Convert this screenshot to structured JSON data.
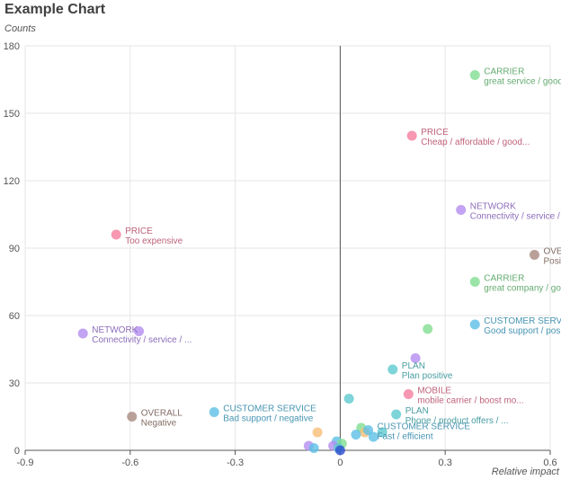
{
  "chart_data": {
    "type": "scatter",
    "title": "Example Chart",
    "xlabel": "Relative impact",
    "ylabel": "Counts",
    "xlim": [
      -0.9,
      0.6
    ],
    "ylim": [
      0,
      180
    ],
    "x_ticks": [
      -0.9,
      -0.6,
      -0.3,
      0,
      0.3,
      0.6
    ],
    "x_tick_labels": [
      "-0.9",
      "-0.6",
      "-0.3",
      "0",
      "0.3",
      "0.6"
    ],
    "y_ticks": [
      0,
      30,
      60,
      90,
      120,
      150,
      180
    ],
    "y_tick_labels": [
      "0",
      "30",
      "60",
      "90",
      "120",
      "150",
      "180"
    ],
    "grid": true,
    "category_colors": {
      "CARRIER": "#82dd91",
      "PRICE": "#f57d9e",
      "NETWORK": "#b48cf0",
      "OVERALL": "#a88a80",
      "CUSTOMER SERVICE": "#5cbfe6",
      "PLAN": "#5cc9cf",
      "MOBILE": "#f57d9e",
      "OTHER_ORANGE": "#f8bd75",
      "OTHER_BLUE": "#2a4bd0"
    },
    "points": [
      {
        "x": 0.385,
        "y": 167,
        "category": "CARRIER",
        "label": "CARRIER",
        "sublabel": "great service / good s..."
      },
      {
        "x": 0.205,
        "y": 140,
        "category": "PRICE",
        "label": "PRICE",
        "sublabel": "Cheap / affordable / good..."
      },
      {
        "x": 0.345,
        "y": 107,
        "category": "NETWORK",
        "label": "NETWORK",
        "sublabel": "Connectivity / service / ..."
      },
      {
        "x": -0.64,
        "y": 96,
        "category": "PRICE",
        "label": "PRICE",
        "sublabel": "Too expensive"
      },
      {
        "x": 0.555,
        "y": 87,
        "category": "OVERALL",
        "label": "OVER...",
        "sublabel": "Positi..."
      },
      {
        "x": 0.385,
        "y": 75,
        "category": "CARRIER",
        "label": "CARRIER",
        "sublabel": "great company / good..."
      },
      {
        "x": 0.385,
        "y": 56,
        "category": "CUSTOMER SERVICE",
        "label": "CUSTOMER SERVI...",
        "sublabel": "Good support / positiv..."
      },
      {
        "x": 0.25,
        "y": 54,
        "category": "CARRIER",
        "label": "",
        "sublabel": ""
      },
      {
        "x": -0.735,
        "y": 52,
        "category": "NETWORK",
        "label": "NETWORK",
        "sublabel": "Connectivity / service / ..."
      },
      {
        "x": -0.575,
        "y": 53,
        "category": "NETWORK",
        "label": "",
        "sublabel": ""
      },
      {
        "x": 0.215,
        "y": 41,
        "category": "NETWORK",
        "label": "",
        "sublabel": ""
      },
      {
        "x": 0.15,
        "y": 36,
        "category": "PLAN",
        "label": "PLAN",
        "sublabel": "Plan positive"
      },
      {
        "x": 0.195,
        "y": 25,
        "category": "MOBILE",
        "label": "MOBILE",
        "sublabel": "mobile carrier / boost mo..."
      },
      {
        "x": 0.025,
        "y": 23,
        "category": "PLAN",
        "label": "",
        "sublabel": ""
      },
      {
        "x": -0.36,
        "y": 17,
        "category": "CUSTOMER SERVICE",
        "label": "CUSTOMER SERVICE",
        "sublabel": "Bad support / negative"
      },
      {
        "x": 0.16,
        "y": 16,
        "category": "PLAN",
        "label": "PLAN",
        "sublabel": "Phone / product offers / ..."
      },
      {
        "x": -0.595,
        "y": 15,
        "category": "OVERALL",
        "label": "OVERALL",
        "sublabel": "Negative"
      },
      {
        "x": 0.06,
        "y": 10,
        "category": "CARRIER",
        "label": "",
        "sublabel": ""
      },
      {
        "x": 0.07,
        "y": 8,
        "category": "OTHER_ORANGE",
        "label": "",
        "sublabel": ""
      },
      {
        "x": 0.08,
        "y": 9,
        "category": "CUSTOMER SERVICE",
        "label": "CUSTOMER SERVICE",
        "sublabel": "Fast / efficient"
      },
      {
        "x": 0.045,
        "y": 7,
        "category": "CUSTOMER SERVICE",
        "label": "",
        "sublabel": ""
      },
      {
        "x": 0.095,
        "y": 6,
        "category": "CUSTOMER SERVICE",
        "label": "",
        "sublabel": ""
      },
      {
        "x": 0.12,
        "y": 8,
        "category": "PLAN",
        "label": "",
        "sublabel": ""
      },
      {
        "x": -0.065,
        "y": 8,
        "category": "OTHER_ORANGE",
        "label": "",
        "sublabel": ""
      },
      {
        "x": -0.01,
        "y": 4,
        "category": "CUSTOMER SERVICE",
        "label": "",
        "sublabel": ""
      },
      {
        "x": 0.005,
        "y": 3,
        "category": "CARRIER",
        "label": "",
        "sublabel": ""
      },
      {
        "x": -0.02,
        "y": 2,
        "category": "NETWORK",
        "label": "",
        "sublabel": ""
      },
      {
        "x": -0.09,
        "y": 2,
        "category": "NETWORK",
        "label": "",
        "sublabel": ""
      },
      {
        "x": -0.075,
        "y": 1,
        "category": "CUSTOMER SERVICE",
        "label": "",
        "sublabel": ""
      },
      {
        "x": -0.005,
        "y": 1,
        "category": "PLAN",
        "label": "",
        "sublabel": ""
      },
      {
        "x": 0.0,
        "y": 0,
        "category": "OTHER_BLUE",
        "label": "",
        "sublabel": ""
      }
    ]
  }
}
